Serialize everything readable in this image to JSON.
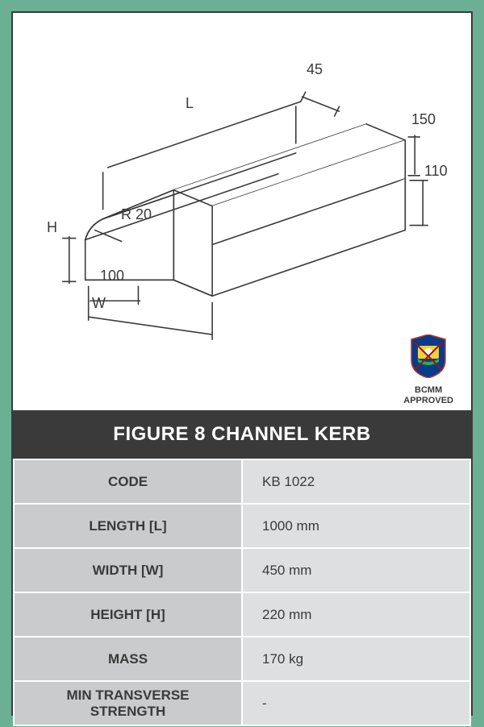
{
  "colors": {
    "page_bg": "#6bb095",
    "card_border": "#3a3a3a",
    "title_bg": "#3a3a3a",
    "title_fg": "#ffffff",
    "label_bg": "#c9cbcc",
    "value_bg": "#dedfe0",
    "text": "#3a3a3a",
    "grid_border": "#ffffff",
    "line": "#3a3a3a"
  },
  "diagram": {
    "type": "isometric-line-drawing",
    "stroke_width": 1.6,
    "labels": {
      "L": "L",
      "H": "H",
      "W": "W",
      "R": "R 20",
      "d45": "45",
      "d150": "150",
      "d110": "110",
      "d100": "100"
    }
  },
  "approval": {
    "line1": "BCMM",
    "line2": "APPROVED"
  },
  "title": "FIGURE 8 CHANNEL KERB",
  "specs": [
    {
      "label": "CODE",
      "value": "KB 1022"
    },
    {
      "label": "LENGTH [L]",
      "value": "1000 mm"
    },
    {
      "label": "WIDTH [W]",
      "value": "450 mm"
    },
    {
      "label": "HEIGHT [H]",
      "value": "220 mm"
    },
    {
      "label": "MASS",
      "value": "170 kg"
    },
    {
      "label": "MIN TRANSVERSE STRENGTH",
      "value": "-"
    }
  ],
  "typography": {
    "title_fontsize": 24,
    "dim_label_fontsize": 18,
    "table_fontsize": 17,
    "approval_fontsize": 11
  }
}
